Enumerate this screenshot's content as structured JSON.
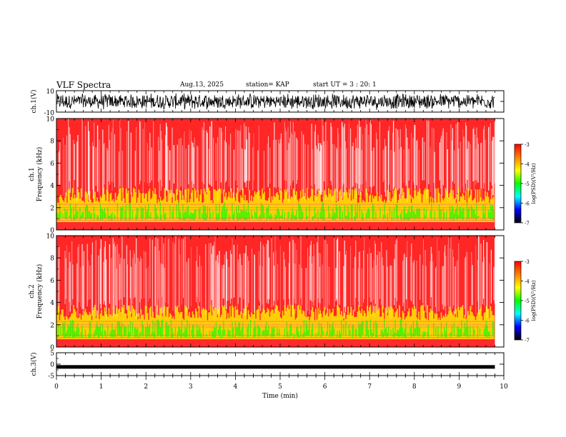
{
  "header": {
    "title": "VLF Spectra",
    "date": "Aug.13, 2025",
    "station": "station= KAP",
    "start_ut": "start  UT =   3 : 20: 1"
  },
  "chart_data": [
    {
      "type": "line",
      "name": "ch1-waveform",
      "ylabel": "ch.1(V)",
      "ylim": [
        -10,
        10
      ],
      "tick_labels": [
        "10",
        "-10"
      ],
      "xlim": [
        0,
        10
      ],
      "data_extent_min": 9.8,
      "amplitude_range": [
        -8,
        8
      ]
    },
    {
      "type": "heatmap",
      "name": "ch1-spectrogram",
      "ylabel": "ch.1\nFrequency  (kHz)",
      "ylabel_lines": [
        "ch.1",
        "Frequency  (kHz)"
      ],
      "ylim": [
        0,
        10
      ],
      "ytick_labels": [
        "0",
        "2",
        "4",
        "6",
        "8",
        "10"
      ],
      "xlim": [
        0,
        10
      ],
      "colorbar": {
        "label": "log(PSD)(V²/Hz)",
        "range": [
          -7,
          -3
        ],
        "tick_labels": [
          "-3",
          "-4",
          "-5",
          "-6",
          "-7"
        ]
      }
    },
    {
      "type": "heatmap",
      "name": "ch2-spectrogram",
      "ylabel": "ch.2\nFrequency  (kHz)",
      "ylabel_lines": [
        "ch.2",
        "Frequency  (kHz)"
      ],
      "ylim": [
        0,
        10
      ],
      "ytick_labels": [
        "0",
        "2",
        "4",
        "6",
        "8",
        "10"
      ],
      "xlim": [
        0,
        10
      ],
      "colorbar": {
        "label": "log(PSD)(V²/Hz)",
        "range": [
          -7,
          -3
        ],
        "tick_labels": [
          "-3",
          "-4",
          "-5",
          "-6",
          "-7"
        ]
      }
    },
    {
      "type": "line",
      "name": "ch3-waveform",
      "ylabel": "ch.3(V)",
      "ylim": [
        -5,
        5
      ],
      "tick_labels": [
        "5",
        "0",
        "-5"
      ],
      "xlim": [
        0,
        10
      ],
      "level": -1.2,
      "xlabel": "Time  (min)",
      "xtick_labels": [
        "0",
        "1",
        "2",
        "3",
        "4",
        "5",
        "6",
        "7",
        "8",
        "9",
        "10"
      ]
    }
  ],
  "colors": {
    "spectrum_high": "#ff0000",
    "spectrum_mid": "#ffff00",
    "spectrum_low": "#00ff00",
    "colorbar_stops": [
      "#ff0000",
      "#ff8000",
      "#ffff00",
      "#00ff00",
      "#00ffff",
      "#0000ff",
      "#000000"
    ]
  }
}
